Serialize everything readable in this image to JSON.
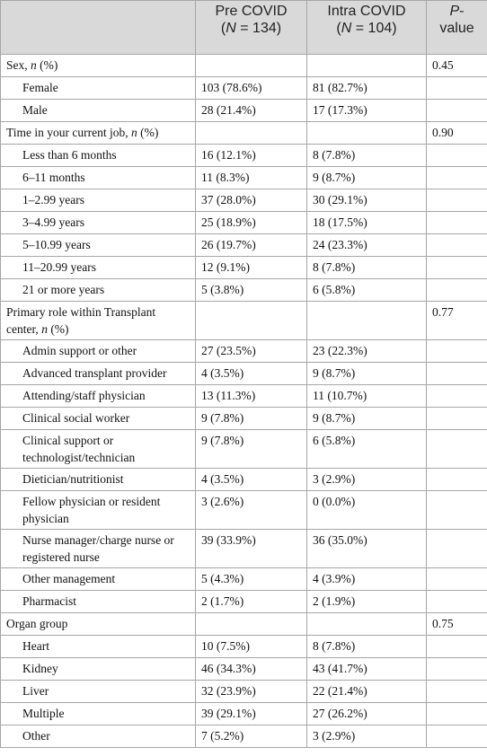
{
  "table": {
    "header": [
      {
        "lines": [
          [
            {
              "text": "Pre COVID"
            }
          ],
          [
            {
              "text": "("
            },
            {
              "text": "N",
              "italic": true
            },
            {
              "text": " = 134)"
            }
          ]
        ]
      },
      {
        "lines": [
          [
            {
              "text": "Intra COVID"
            }
          ],
          [
            {
              "text": "("
            },
            {
              "text": "N",
              "italic": true
            },
            {
              "text": " = 104)"
            }
          ]
        ]
      },
      {
        "lines": [
          [
            {
              "text": "P",
              "italic": true
            },
            {
              "text": "-"
            }
          ],
          [
            {
              "text": "value"
            }
          ]
        ]
      }
    ],
    "rows": [
      {
        "label": [
          {
            "text": "Sex, "
          },
          {
            "text": "n",
            "italic": true
          },
          {
            "text": " (%)"
          }
        ],
        "indent": false,
        "pre": null,
        "intra": null,
        "p": "0.45"
      },
      {
        "label": "Female",
        "indent": true,
        "pre": "103 (78.6%)",
        "intra": "81 (82.7%)",
        "p": null
      },
      {
        "label": "Male",
        "indent": true,
        "pre": "28 (21.4%)",
        "intra": "17 (17.3%)",
        "p": null
      },
      {
        "label": [
          {
            "text": "Time in your current job, "
          },
          {
            "text": "n",
            "italic": true
          },
          {
            "text": " (%)"
          }
        ],
        "indent": false,
        "pre": null,
        "intra": null,
        "p": "0.90"
      },
      {
        "label": "Less than 6 months",
        "indent": true,
        "pre": "16 (12.1%)",
        "intra": "8 (7.8%)",
        "p": null
      },
      {
        "label": "6–11 months",
        "indent": true,
        "pre": "11 (8.3%)",
        "intra": "9 (8.7%)",
        "p": null
      },
      {
        "label": "1–2.99 years",
        "indent": true,
        "pre": "37 (28.0%)",
        "intra": "30 (29.1%)",
        "p": null
      },
      {
        "label": "3–4.99 years",
        "indent": true,
        "pre": "25 (18.9%)",
        "intra": "18 (17.5%)",
        "p": null
      },
      {
        "label": "5–10.99 years",
        "indent": true,
        "pre": "26 (19.7%)",
        "intra": "24 (23.3%)",
        "p": null
      },
      {
        "label": "11–20.99 years",
        "indent": true,
        "pre": "12 (9.1%)",
        "intra": "8 (7.8%)",
        "p": null
      },
      {
        "label": "21 or more years",
        "indent": true,
        "pre": "5 (3.8%)",
        "intra": "6 (5.8%)",
        "p": null
      },
      {
        "label": [
          {
            "text": "Primary role within Transplant center, "
          },
          {
            "text": "n",
            "italic": true
          },
          {
            "text": " (%)"
          }
        ],
        "indent": false,
        "pre": null,
        "intra": null,
        "p": "0.77"
      },
      {
        "label": "Admin support or other",
        "indent": true,
        "pre": "27 (23.5%)",
        "intra": "23 (22.3%)",
        "p": null
      },
      {
        "label": "Advanced transplant provider",
        "indent": true,
        "pre": "4 (3.5%)",
        "intra": "9 (8.7%)",
        "p": null
      },
      {
        "label": "Attending/staff physician",
        "indent": true,
        "pre": "13 (11.3%)",
        "intra": "11 (10.7%)",
        "p": null
      },
      {
        "label": "Clinical social worker",
        "indent": true,
        "pre": "9 (7.8%)",
        "intra": "9 (8.7%)",
        "p": null
      },
      {
        "label": "Clinical support or technologist/technician",
        "indent": true,
        "pre": "9 (7.8%)",
        "intra": "6 (5.8%)",
        "p": null
      },
      {
        "label": "Dietician/nutritionist",
        "indent": true,
        "pre": "4 (3.5%)",
        "intra": "3 (2.9%)",
        "p": null
      },
      {
        "label": "Fellow physician or resident physician",
        "indent": true,
        "pre": "3 (2.6%)",
        "intra": "0 (0.0%)",
        "p": null
      },
      {
        "label": "Nurse manager/charge nurse or registered nurse",
        "indent": true,
        "pre": "39 (33.9%)",
        "intra": "36 (35.0%)",
        "p": null
      },
      {
        "label": "Other management",
        "indent": true,
        "pre": "5 (4.3%)",
        "intra": "4 (3.9%)",
        "p": null
      },
      {
        "label": "Pharmacist",
        "indent": true,
        "pre": "2 (1.7%)",
        "intra": "2 (1.9%)",
        "p": null
      },
      {
        "label": "Organ group",
        "indent": false,
        "pre": null,
        "intra": null,
        "p": "0.75"
      },
      {
        "label": "Heart",
        "indent": true,
        "pre": "10 (7.5%)",
        "intra": "8 (7.8%)",
        "p": null
      },
      {
        "label": "Kidney",
        "indent": true,
        "pre": "46 (34.3%)",
        "intra": "43 (41.7%)",
        "p": null
      },
      {
        "label": "Liver",
        "indent": true,
        "pre": "32 (23.9%)",
        "intra": "22 (21.4%)",
        "p": null
      },
      {
        "label": "Multiple",
        "indent": true,
        "pre": "39 (29.1%)",
        "intra": "27 (26.2%)",
        "p": null
      },
      {
        "label": "Other",
        "indent": true,
        "pre": "7 (5.2%)",
        "intra": "3 (2.9%)",
        "p": null
      }
    ]
  }
}
